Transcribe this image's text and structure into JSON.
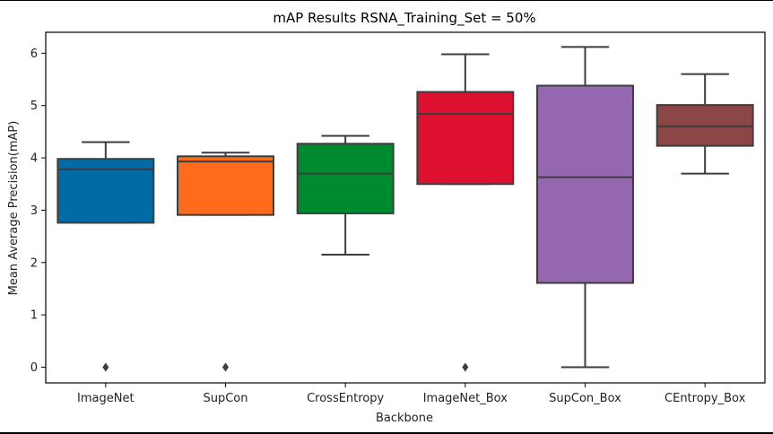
{
  "chart_data": {
    "type": "box",
    "title": "mAP Results RSNA_Training_Set = 50%",
    "xlabel": "Backbone",
    "ylabel": "Mean Average Precision(mAP)",
    "ylim": [
      -0.3,
      6.4
    ],
    "yticks": [
      "0",
      "1",
      "2",
      "3",
      "4",
      "5",
      "6"
    ],
    "grid": false,
    "categories": [
      "ImageNet",
      "SupCon",
      "CrossEntropy",
      "ImageNet_Box",
      "SupCon_Box",
      "CEntropy_Box"
    ],
    "boxes": [
      {
        "name": "ImageNet",
        "color": "#006ba4",
        "whisker_low": 2.76,
        "q1": 2.76,
        "median": 3.78,
        "q3": 3.98,
        "whisker_high": 4.3,
        "outliers": [
          0.0
        ]
      },
      {
        "name": "SupCon",
        "color": "#ff6b1a",
        "whisker_low": 2.91,
        "q1": 2.91,
        "median": 3.93,
        "q3": 4.03,
        "whisker_high": 4.1,
        "outliers": [
          0.0
        ]
      },
      {
        "name": "CrossEntropy",
        "color": "#008a30",
        "whisker_low": 2.15,
        "q1": 2.94,
        "median": 3.7,
        "q3": 4.27,
        "whisker_high": 4.42,
        "outliers": []
      },
      {
        "name": "ImageNet_Box",
        "color": "#de1030",
        "whisker_low": 3.5,
        "q1": 3.5,
        "median": 4.84,
        "q3": 5.26,
        "whisker_high": 5.98,
        "outliers": [
          0.0
        ]
      },
      {
        "name": "SupCon_Box",
        "color": "#9467b0",
        "whisker_low": 0.0,
        "q1": 1.61,
        "median": 3.63,
        "q3": 5.38,
        "whisker_high": 6.12,
        "outliers": []
      },
      {
        "name": "CEntropy_Box",
        "color": "#8c4646",
        "whisker_low": 3.7,
        "q1": 4.23,
        "median": 4.6,
        "q3": 5.01,
        "whisker_high": 5.6,
        "outliers": []
      }
    ]
  }
}
